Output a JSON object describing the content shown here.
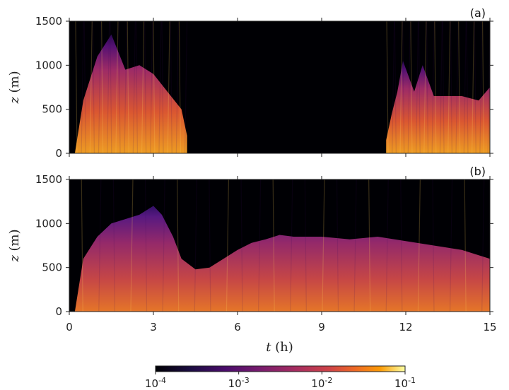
{
  "chart_data": {
    "type": "heatmap",
    "colormap": "inferno",
    "shared_x": {
      "label": "t (h)",
      "label_var": "t",
      "label_unit": "(h)",
      "xlim": [
        0,
        15
      ],
      "ticks": [
        "0",
        "3",
        "6",
        "9",
        "12",
        "15"
      ]
    },
    "panels": [
      {
        "label": "(a)",
        "ylabel": "z (m)",
        "ylabel_var": "z",
        "ylabel_unit": "(m)",
        "ylim": [
          0,
          1500
        ],
        "yticks": [
          "0",
          "500",
          "1000",
          "1500"
        ],
        "regions": [
          {
            "t_start": 0.2,
            "t_end": 4.2,
            "top_z_approx": [
              [
                0.2,
                0
              ],
              [
                0.5,
                600
              ],
              [
                1.0,
                1100
              ],
              [
                1.5,
                1350
              ],
              [
                2.0,
                950
              ],
              [
                2.5,
                1000
              ],
              [
                3.0,
                900
              ],
              [
                3.5,
                700
              ],
              [
                4.0,
                500
              ],
              [
                4.2,
                200
              ]
            ]
          },
          {
            "t_start": 10.9,
            "t_end": 15,
            "top_z_approx": [
              [
                11.3,
                150
              ],
              [
                11.5,
                450
              ],
              [
                11.7,
                700
              ],
              [
                11.9,
                1050
              ],
              [
                12.3,
                700
              ],
              [
                12.6,
                1000
              ],
              [
                13.0,
                650
              ],
              [
                14.0,
                650
              ],
              [
                14.6,
                600
              ],
              [
                15.0,
                750
              ]
            ]
          }
        ]
      },
      {
        "label": "(b)",
        "ylabel": "z (m)",
        "ylabel_var": "z",
        "ylabel_unit": "(m)",
        "ylim": [
          0,
          1500
        ],
        "yticks": [
          "0",
          "500",
          "1000",
          "1500"
        ],
        "regions": [
          {
            "t_start": 0.2,
            "t_end": 15,
            "top_z_approx": [
              [
                0.2,
                0
              ],
              [
                0.5,
                600
              ],
              [
                1.0,
                850
              ],
              [
                1.5,
                1000
              ],
              [
                2.0,
                1050
              ],
              [
                2.5,
                1100
              ],
              [
                3.0,
                1200
              ],
              [
                3.3,
                1100
              ],
              [
                3.7,
                850
              ],
              [
                4.0,
                600
              ],
              [
                4.5,
                480
              ],
              [
                5.0,
                500
              ],
              [
                5.5,
                600
              ],
              [
                6.0,
                700
              ],
              [
                6.5,
                780
              ],
              [
                7.0,
                820
              ],
              [
                7.5,
                870
              ],
              [
                8.0,
                850
              ],
              [
                9.0,
                850
              ],
              [
                10.0,
                820
              ],
              [
                11.0,
                850
              ],
              [
                12.0,
                800
              ],
              [
                13.0,
                750
              ],
              [
                14.0,
                700
              ],
              [
                15.0,
                600
              ]
            ]
          }
        ]
      }
    ],
    "colorbar": {
      "range": [
        0.0001,
        0.1
      ],
      "scale": "log",
      "tick_bases": [
        "10",
        "10",
        "10",
        "10"
      ],
      "tick_exponents": [
        "-4",
        "-3",
        "-2",
        "-1"
      ]
    }
  }
}
